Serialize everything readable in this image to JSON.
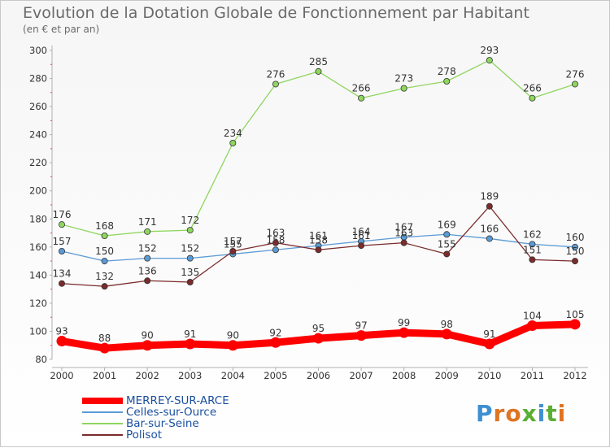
{
  "title": "Evolution de la Dotation Globale de Fonctionnement par Habitant",
  "subtitle": "(en € et par an)",
  "logo": {
    "text": [
      "P",
      "r",
      "o",
      "x",
      "i",
      "t",
      "i"
    ],
    "colors": [
      "#3d8fd1",
      "#e0731f",
      "#e0731f",
      "#5aae32",
      "#3d8fd1",
      "#5aae32",
      "#e0731f"
    ]
  },
  "chart_data": {
    "type": "line",
    "x": [
      "2000",
      "2001",
      "2002",
      "2003",
      "2004",
      "2005",
      "2006",
      "2007",
      "2008",
      "2009",
      "2010",
      "2011",
      "2012"
    ],
    "ylim": [
      80,
      300
    ],
    "yticks": [
      "80",
      "100",
      "120",
      "140",
      "160",
      "180",
      "200",
      "220",
      "240",
      "260",
      "280",
      "300"
    ],
    "grid": false,
    "legend_position": "bottom-left",
    "series": [
      {
        "name": "MERREY-SUR-ARCE",
        "color": "#ff0000",
        "values": [
          93,
          88,
          90,
          91,
          90,
          92,
          95,
          97,
          99,
          98,
          91,
          104,
          105
        ],
        "labels": [
          "93",
          "88",
          "90",
          "91",
          "90",
          "92",
          "95",
          "97",
          "99",
          "98",
          "91",
          "104",
          "105"
        ]
      },
      {
        "name": "Celles-sur-Ource",
        "color": "#5b9bd5",
        "values": [
          157,
          150,
          152,
          152,
          155,
          158,
          161,
          164,
          167,
          169,
          166,
          162,
          160
        ],
        "labels": [
          "157",
          "150",
          "152",
          "152",
          "155",
          "158",
          "161",
          "164",
          "167",
          "169",
          "166",
          "162",
          "160"
        ]
      },
      {
        "name": "Bar-sur-Seine",
        "color": "#8fd65f",
        "values": [
          176,
          168,
          171,
          172,
          234,
          276,
          285,
          266,
          273,
          278,
          293,
          266,
          276
        ],
        "labels": [
          "176",
          "168",
          "171",
          "172",
          "234",
          "276",
          "285",
          "266",
          "273",
          "278",
          "293",
          "266",
          "276"
        ]
      },
      {
        "name": "Polisot",
        "color": "#7b2b2b",
        "values": [
          134,
          132,
          136,
          135,
          157,
          163,
          158,
          161,
          163,
          155,
          189,
          151,
          150
        ],
        "labels": [
          "134",
          "132",
          "136",
          "135",
          "157",
          "163",
          "158",
          "161",
          "163",
          "155",
          "189",
          "151",
          "150"
        ]
      }
    ]
  }
}
